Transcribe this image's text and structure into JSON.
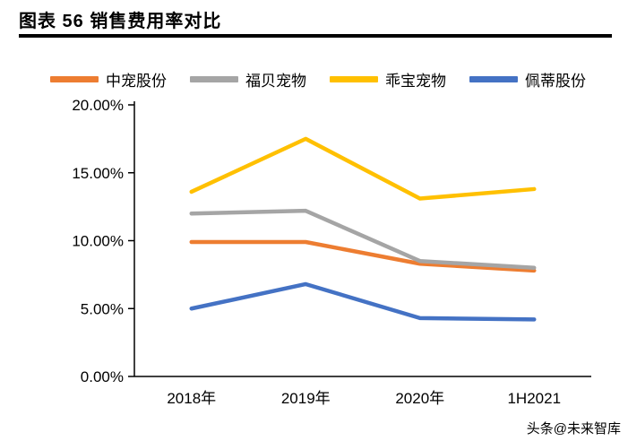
{
  "header": {
    "title": "图表 56  销售费用率对比"
  },
  "watermark": "头条@未来智库",
  "chart_data": {
    "type": "line",
    "title": "销售费用率对比",
    "categories": [
      "2018年",
      "2019年",
      "2020年",
      "1H2021"
    ],
    "series": [
      {
        "name": "中宠股份",
        "color": "#ED7D31",
        "values": [
          9.9,
          9.9,
          8.3,
          7.8
        ]
      },
      {
        "name": "福贝宠物",
        "color": "#A5A5A5",
        "values": [
          12.0,
          12.2,
          8.5,
          8.0
        ]
      },
      {
        "name": "乖宝宠物",
        "color": "#FFC000",
        "values": [
          13.6,
          17.5,
          13.1,
          13.8
        ]
      },
      {
        "name": "佩蒂股份",
        "color": "#4472C4",
        "values": [
          5.0,
          6.8,
          4.3,
          4.2
        ]
      }
    ],
    "ylim": [
      0,
      20
    ],
    "ytick_step": 5,
    "ytick_labels": [
      "0.00%",
      "5.00%",
      "10.00%",
      "15.00%",
      "20.00%"
    ],
    "xlabel": "",
    "ylabel": "",
    "grid": false,
    "legend_position": "top"
  }
}
